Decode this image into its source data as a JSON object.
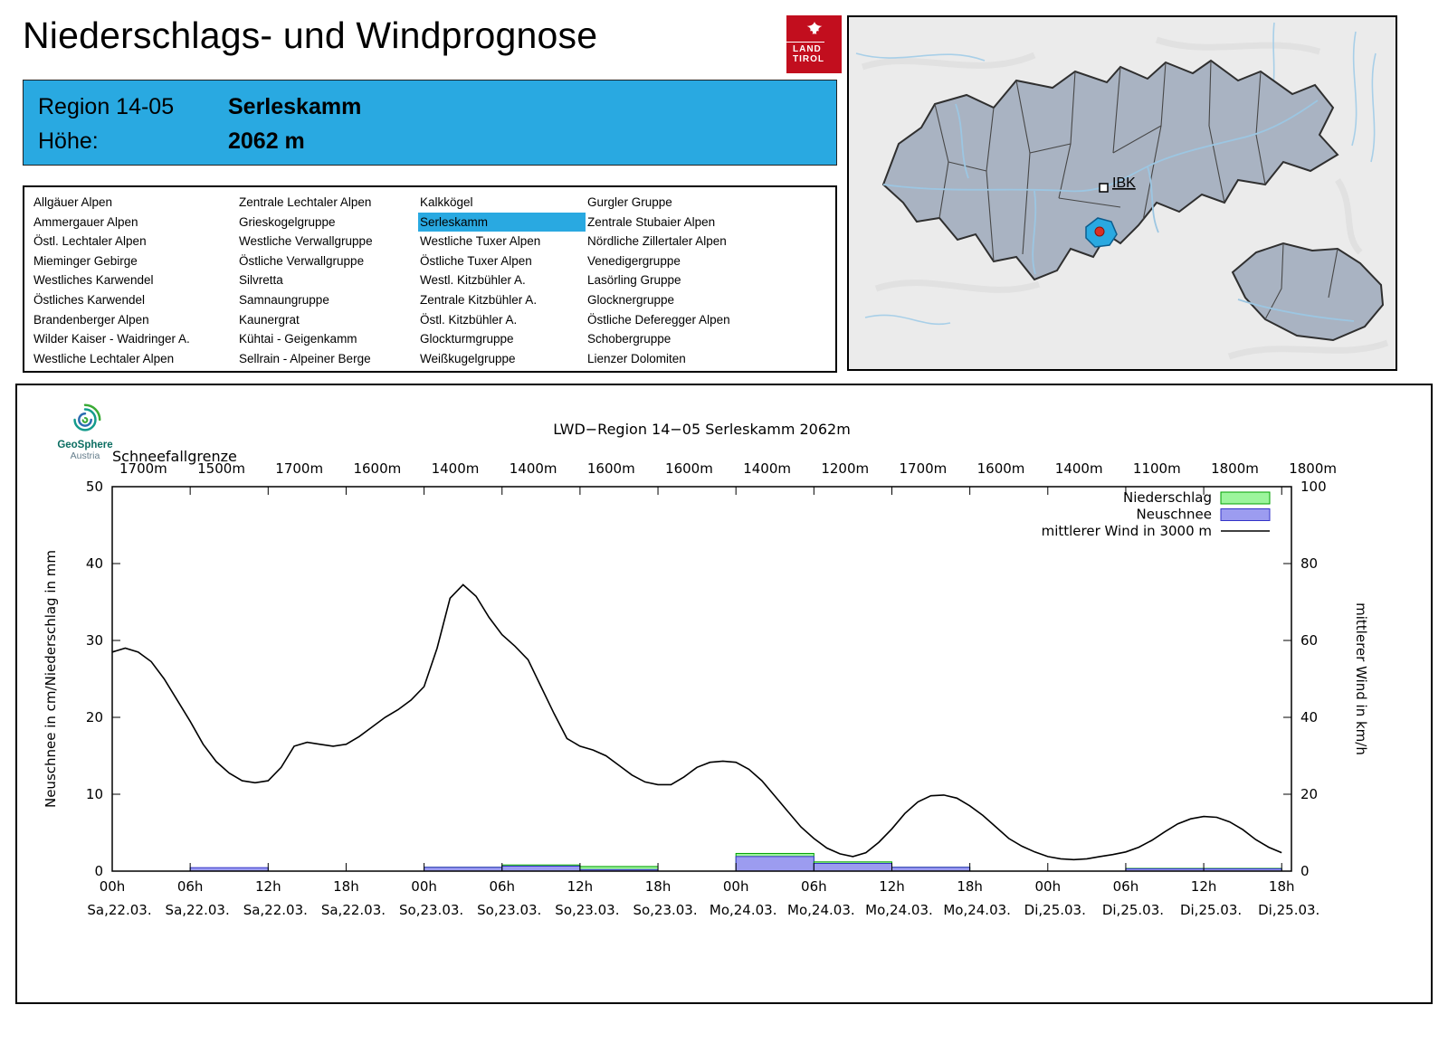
{
  "page": {
    "title": "Niederschlags- und Windprognose"
  },
  "logo": {
    "line1": "LAND",
    "line2": "TIROL"
  },
  "region_box": {
    "region_label": "Region 14-05",
    "region_name": "Serleskamm",
    "hoehe_label": "Höhe:",
    "hoehe_value": "2062 m"
  },
  "region_list": {
    "selected": "Serleskamm",
    "columns": [
      [
        "Allgäuer Alpen",
        "Ammergauer Alpen",
        "Östl. Lechtaler Alpen",
        "Mieminger Gebirge",
        "Westliches Karwendel",
        "Östliches Karwendel",
        "Brandenberger Alpen",
        "Wilder Kaiser - Waidringer A.",
        "Westliche Lechtaler Alpen"
      ],
      [
        "Zentrale Lechtaler Alpen",
        "Grieskogelgruppe",
        "Westliche Verwallgruppe",
        "Östliche Verwallgruppe",
        "Silvretta",
        "Samnaungruppe",
        "Kaunergrat",
        "Kühtai - Geigenkamm",
        "Sellrain - Alpeiner Berge"
      ],
      [
        "Kalkkögel",
        "Serleskamm",
        "Westliche Tuxer Alpen",
        "Östliche Tuxer Alpen",
        "Westl. Kitzbühler A.",
        "Zentrale Kitzbühler A.",
        "Östl. Kitzbühler A.",
        "Glockturmgruppe",
        "Weißkugelgruppe"
      ],
      [
        "Gurgler Gruppe",
        "Zentrale Stubaier Alpen",
        "Nördliche Zillertaler Alpen",
        "Venedigergruppe",
        "Lasörling Gruppe",
        "Glocknergruppe",
        "Östliche Deferegger Alpen",
        "Schobergruppe",
        "Lienzer Dolomiten"
      ]
    ]
  },
  "map": {
    "city_label": "IBK"
  },
  "geosphere": {
    "name": "GeoSphere",
    "country": "Austria"
  },
  "colors": {
    "accent_blue": "#29a9e1",
    "logo_red": "#c20e1e",
    "niederschlag_fill": "#9cf59c",
    "niederschlag_border": "#00a000",
    "neuschnee_fill": "#9c9cf0",
    "neuschnee_border": "#3434c8",
    "wind_line": "#000000",
    "map_region_fill": "#a9b3c2"
  },
  "chart_data": {
    "type": "line+bar",
    "title": "LWD−Region 14−05 Serleskamm 2062m",
    "snowline_label": "Schneefallgrenze",
    "snowline_values": [
      "1700m",
      "1500m",
      "1700m",
      "1600m",
      "1400m",
      "1400m",
      "1600m",
      "1600m",
      "1400m",
      "1200m",
      "1700m",
      "1600m",
      "1400m",
      "1100m",
      "1800m",
      "1800m"
    ],
    "ylabel_left": "Neuschnee in cm/Niederschlag in mm",
    "ylabel_right": "mittlerer Wind in km/h",
    "ylim_left": [
      0,
      50
    ],
    "ylim_right": [
      0,
      100
    ],
    "yticks_left": [
      0,
      10,
      20,
      30,
      40,
      50
    ],
    "yticks_right": [
      0,
      20,
      40,
      60,
      80,
      100
    ],
    "x_ticks": [
      {
        "hour": "00h",
        "day": "Sa,22.03."
      },
      {
        "hour": "06h",
        "day": "Sa,22.03."
      },
      {
        "hour": "12h",
        "day": "Sa,22.03."
      },
      {
        "hour": "18h",
        "day": "Sa,22.03."
      },
      {
        "hour": "00h",
        "day": "So,23.03."
      },
      {
        "hour": "06h",
        "day": "So,23.03."
      },
      {
        "hour": "12h",
        "day": "So,23.03."
      },
      {
        "hour": "18h",
        "day": "So,23.03."
      },
      {
        "hour": "00h",
        "day": "Mo,24.03."
      },
      {
        "hour": "06h",
        "day": "Mo,24.03."
      },
      {
        "hour": "12h",
        "day": "Mo,24.03."
      },
      {
        "hour": "18h",
        "day": "Mo,24.03."
      },
      {
        "hour": "00h",
        "day": "Di,25.03."
      },
      {
        "hour": "06h",
        "day": "Di,25.03."
      },
      {
        "hour": "12h",
        "day": "Di,25.03."
      },
      {
        "hour": "18h",
        "day": "Di,25.03."
      }
    ],
    "legend": [
      {
        "label": "Niederschlag",
        "type": "box",
        "fill_key": "niederschlag_fill",
        "border_key": "niederschlag_border"
      },
      {
        "label": "Neuschnee",
        "type": "box",
        "fill_key": "neuschnee_fill",
        "border_key": "neuschnee_border"
      },
      {
        "label": "mittlerer Wind in 3000 m",
        "type": "line"
      }
    ],
    "wind_series": {
      "name": "mittlerer Wind in 3000 m",
      "unit": "km/h",
      "points": [
        [
          0,
          57
        ],
        [
          1,
          58
        ],
        [
          2,
          57
        ],
        [
          3,
          54.5
        ],
        [
          4,
          50
        ],
        [
          5,
          44.5
        ],
        [
          6,
          39
        ],
        [
          7,
          33
        ],
        [
          8,
          28.5
        ],
        [
          9,
          25.5
        ],
        [
          10,
          23.5
        ],
        [
          11,
          23
        ],
        [
          12,
          23.5
        ],
        [
          13,
          27
        ],
        [
          14,
          32.5
        ],
        [
          15,
          33.5
        ],
        [
          16,
          33
        ],
        [
          17,
          32.5
        ],
        [
          18,
          33
        ],
        [
          19,
          35
        ],
        [
          20,
          37.5
        ],
        [
          21,
          40
        ],
        [
          22,
          42
        ],
        [
          23,
          44.5
        ],
        [
          24,
          48
        ],
        [
          25,
          58
        ],
        [
          26,
          71
        ],
        [
          27,
          74.5
        ],
        [
          28,
          71.5
        ],
        [
          29,
          66
        ],
        [
          30,
          61.5
        ],
        [
          31,
          58.5
        ],
        [
          32,
          55
        ],
        [
          33,
          48
        ],
        [
          34,
          41
        ],
        [
          35,
          34.5
        ],
        [
          36,
          32.5
        ],
        [
          37,
          31.5
        ],
        [
          38,
          30
        ],
        [
          39,
          27.5
        ],
        [
          40,
          25
        ],
        [
          41,
          23.2
        ],
        [
          42,
          22.5
        ],
        [
          43,
          22.5
        ],
        [
          44,
          24.5
        ],
        [
          45,
          27
        ],
        [
          46,
          28.3
        ],
        [
          47,
          28.6
        ],
        [
          48,
          28.3
        ],
        [
          49,
          26.5
        ],
        [
          50,
          23.5
        ],
        [
          51,
          19.5
        ],
        [
          52,
          15.5
        ],
        [
          53,
          11.5
        ],
        [
          54,
          8.5
        ],
        [
          55,
          6
        ],
        [
          56,
          4.5
        ],
        [
          57,
          3.8
        ],
        [
          58,
          4.8
        ],
        [
          59,
          7.5
        ],
        [
          60,
          11
        ],
        [
          61,
          15
        ],
        [
          62,
          18
        ],
        [
          63,
          19.6
        ],
        [
          64,
          19.8
        ],
        [
          65,
          19
        ],
        [
          66,
          17
        ],
        [
          67,
          14.5
        ],
        [
          68,
          11.5
        ],
        [
          69,
          8.5
        ],
        [
          70,
          6.5
        ],
        [
          71,
          5
        ],
        [
          72,
          3.8
        ],
        [
          73,
          3.2
        ],
        [
          74,
          3
        ],
        [
          75,
          3.2
        ],
        [
          76,
          3.8
        ],
        [
          77,
          4.3
        ],
        [
          78,
          5
        ],
        [
          79,
          6.2
        ],
        [
          80,
          8
        ],
        [
          81,
          10.2
        ],
        [
          82,
          12.3
        ],
        [
          83,
          13.6
        ],
        [
          84,
          14.2
        ],
        [
          85,
          14
        ],
        [
          86,
          12.8
        ],
        [
          87,
          10.8
        ],
        [
          88,
          8.2
        ],
        [
          89,
          6.2
        ],
        [
          90,
          4.8
        ]
      ]
    },
    "bars": [
      {
        "from_hour": 6,
        "to_hour": 12,
        "niederschlag_mm": 0.4,
        "neuschnee_cm": 0.45
      },
      {
        "from_hour": 24,
        "to_hour": 30,
        "niederschlag_mm": 0.5,
        "neuschnee_cm": 0.5
      },
      {
        "from_hour": 30,
        "to_hour": 36,
        "niederschlag_mm": 0.8,
        "neuschnee_cm": 0.65
      },
      {
        "from_hour": 36,
        "to_hour": 42,
        "niederschlag_mm": 0.6,
        "neuschnee_cm": 0.2
      },
      {
        "from_hour": 48,
        "to_hour": 54,
        "niederschlag_mm": 2.3,
        "neuschnee_cm": 1.9
      },
      {
        "from_hour": 54,
        "to_hour": 60,
        "niederschlag_mm": 1.2,
        "neuschnee_cm": 1.0
      },
      {
        "from_hour": 60,
        "to_hour": 66,
        "niederschlag_mm": 0.5,
        "neuschnee_cm": 0.5
      },
      {
        "from_hour": 78,
        "to_hour": 84,
        "niederschlag_mm": 0.35,
        "neuschnee_cm": 0.3
      },
      {
        "from_hour": 84,
        "to_hour": 90,
        "niederschlag_mm": 0.35,
        "neuschnee_cm": 0.3
      }
    ]
  }
}
